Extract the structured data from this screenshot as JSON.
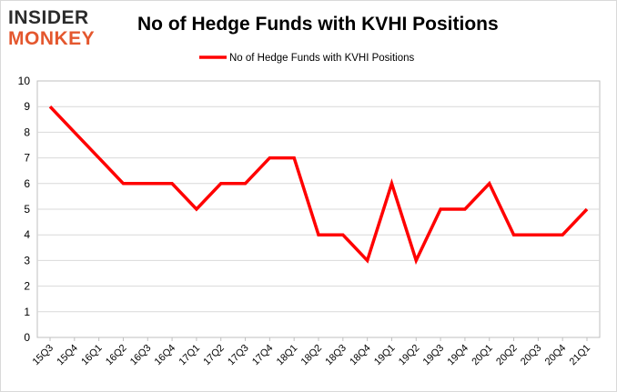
{
  "brand": {
    "line1": "INSIDER",
    "line2": "MONKEY"
  },
  "chart_data": {
    "type": "line",
    "title": "No of Hedge Funds with KVHI Positions",
    "categories": [
      "15Q3",
      "15Q4",
      "16Q1",
      "16Q2",
      "16Q3",
      "16Q4",
      "17Q1",
      "17Q2",
      "17Q3",
      "17Q4",
      "18Q1",
      "18Q2",
      "18Q3",
      "18Q4",
      "19Q1",
      "19Q2",
      "19Q3",
      "19Q4",
      "20Q1",
      "20Q2",
      "20Q3",
      "20Q4",
      "21Q1"
    ],
    "series": [
      {
        "name": "No of Hedge Funds with KVHI Positions",
        "values": [
          9,
          8,
          7,
          6,
          6,
          6,
          5,
          6,
          6,
          7,
          7,
          4,
          4,
          3,
          6,
          3,
          5,
          5,
          6,
          4,
          4,
          4,
          5
        ],
        "color": "#ff0000"
      }
    ],
    "ylim": [
      0,
      10
    ],
    "yticks": [
      "0",
      "1",
      "2",
      "3",
      "4",
      "5",
      "6",
      "7",
      "8",
      "9",
      "10"
    ],
    "grid": true,
    "legend_position": "top"
  }
}
